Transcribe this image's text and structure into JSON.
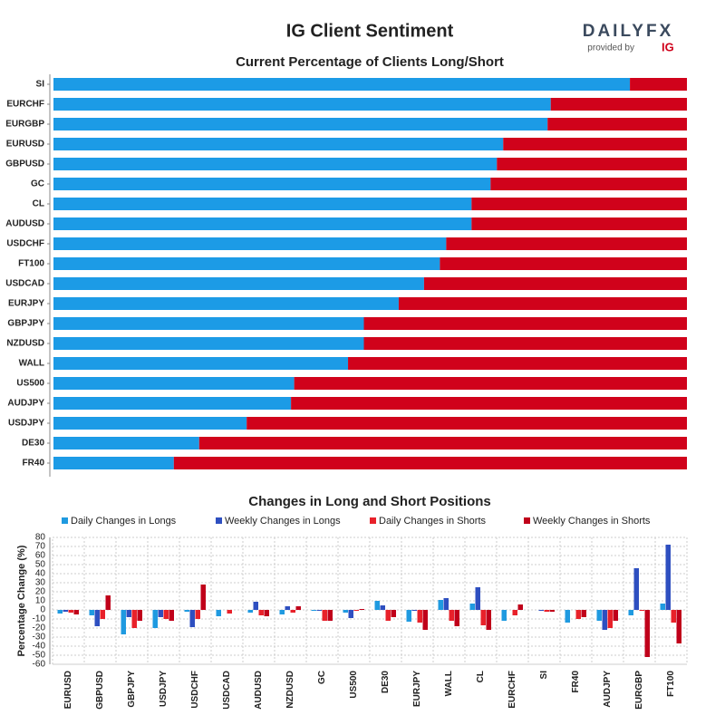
{
  "title": "IG Client Sentiment",
  "logo": {
    "brand": "DAILYFX",
    "provided": "provided by",
    "ig": "IG"
  },
  "chart_data": [
    {
      "type": "hbar-stacked",
      "title": "Current Percentage of Clients Long/Short",
      "categories": [
        "SI",
        "EURCHF",
        "EURGBP",
        "EURUSD",
        "GBPUSD",
        "GC",
        "CL",
        "AUDUSD",
        "USDCHF",
        "FT100",
        "USDCAD",
        "EURJPY",
        "GBPJPY",
        "NZDUSD",
        "WALL",
        "US500",
        "AUDJPY",
        "USDJPY",
        "DE30",
        "FR40"
      ],
      "xlim": [
        0,
        100
      ],
      "series": [
        {
          "color": "#1c9be6",
          "values": [
            91,
            78.5,
            78,
            71,
            70,
            69,
            66,
            66,
            62,
            61,
            58.5,
            54.5,
            49,
            49,
            46.5,
            38,
            37.5,
            30.5,
            23,
            19
          ]
        },
        {
          "color": "#d0021b",
          "values": [
            9,
            21.5,
            22,
            29,
            30,
            31,
            34,
            34,
            38,
            39,
            41.5,
            45.5,
            51,
            51,
            53.5,
            62,
            62.5,
            69.5,
            77,
            81
          ]
        }
      ]
    },
    {
      "type": "bar-grouped",
      "title": "Changes in Long and Short Positions",
      "y_label": "Percentage Change (%)",
      "categories": [
        "EURUSD",
        "GBPUSD",
        "GBPJPY",
        "USDJPY",
        "USDCHF",
        "USDCAD",
        "AUDUSD",
        "NZDUSD",
        "GC",
        "US500",
        "DE30",
        "EURJPY",
        "WALL",
        "CL",
        "EURCHF",
        "SI",
        "FR40",
        "AUDJPY",
        "EURGBP",
        "FT100"
      ],
      "ylim": [
        -60,
        80
      ],
      "yticks": [
        -60,
        -50,
        -40,
        -30,
        -20,
        -10,
        0,
        10,
        20,
        30,
        40,
        50,
        60,
        70,
        80
      ],
      "grid": true,
      "series": [
        {
          "name": "Daily Changes in Longs",
          "color": "#1f9ae0",
          "values": [
            -4,
            -6,
            -27,
            -20,
            -2,
            -7,
            -3,
            -5,
            -1,
            -3,
            10,
            -13,
            11,
            7,
            -12,
            0,
            -14,
            -12,
            -6,
            7
          ]
        },
        {
          "name": "Weekly Changes in Longs",
          "color": "#2e4fc0",
          "values": [
            -2,
            -18,
            -8,
            -8,
            -19,
            0,
            9,
            4,
            -1,
            -9,
            5,
            -1,
            13,
            25,
            0,
            -1,
            0,
            -22,
            46,
            72
          ]
        },
        {
          "name": "Daily Changes in Shorts",
          "color": "#e8212a",
          "values": [
            -3,
            -10,
            -20,
            -10,
            -10,
            -4,
            -6,
            -3,
            -12,
            -1,
            -12,
            -14,
            -12,
            -17,
            -6,
            -2,
            -10,
            -20,
            -1,
            -14
          ]
        },
        {
          "name": "Weekly Changes in Shorts",
          "color": "#c0001a",
          "values": [
            -5,
            16,
            -12,
            -12,
            28,
            0,
            -7,
            4,
            -12,
            1,
            -8,
            -22,
            -18,
            -22,
            6,
            -2,
            -8,
            -12,
            -52,
            -37
          ]
        }
      ]
    }
  ]
}
